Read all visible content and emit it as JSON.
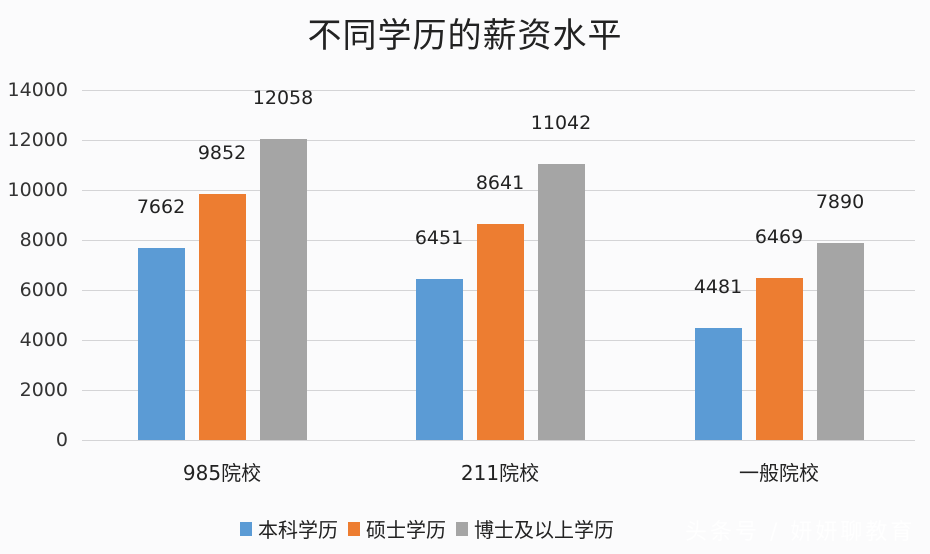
{
  "chart_data": {
    "type": "bar",
    "title": "不同学历的薪资水平",
    "categories": [
      "985院校",
      "211院校",
      "一般院校"
    ],
    "series": [
      {
        "name": "本科学历",
        "color": "#5b9bd5",
        "values": [
          7662,
          6451,
          4481
        ]
      },
      {
        "name": "硕士学历",
        "color": "#ed7d31",
        "values": [
          9852,
          8641,
          6469
        ]
      },
      {
        "name": "博士及以上学历",
        "color": "#a5a5a5",
        "values": [
          12058,
          11042,
          7890
        ]
      }
    ],
    "xlabel": "",
    "ylabel": "",
    "ylim": [
      0,
      14000
    ],
    "yticks": [
      "0",
      "2000",
      "4000",
      "6000",
      "8000",
      "10000",
      "12000",
      "14000"
    ],
    "grid": true,
    "legend_position": "bottom",
    "data_labels": true
  },
  "watermark": "头条号 / 妍妍聊教育"
}
